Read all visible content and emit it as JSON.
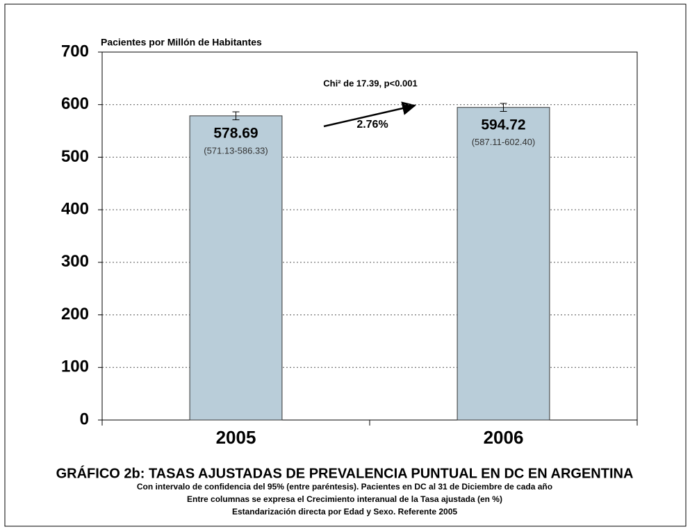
{
  "chart_data": {
    "type": "bar",
    "title": "GRÁFICO 2b:  TASAS AJUSTADAS DE PREVALENCIA PUNTUAL EN DC EN ARGENTINA",
    "subtitle": [
      "Con intervalo de confidencia del 95% (entre paréntesis). Pacientes en DC al 31 de Diciembre de cada año",
      "Entre columnas se expresa el Crecimiento interanual de la Tasa ajustada (en %)",
      "Estandarización directa por Edad y Sexo. Referente 2005"
    ],
    "y_label": "Pacientes por Millón de Habitantes",
    "categories": [
      "2005",
      "2006"
    ],
    "values": [
      578.69,
      594.72
    ],
    "ci_low": [
      571.13,
      587.11
    ],
    "ci_high": [
      586.33,
      602.4
    ],
    "ci_labels": [
      "(571.13-586.33)",
      "(587.11-602.40)"
    ],
    "color": "#b9cdd9",
    "annotations": [
      "Chi² de 17.39, p<0.001",
      "2.76%"
    ],
    "ylim": [
      0,
      700
    ],
    "yticks": [
      0,
      100,
      200,
      300,
      400,
      500,
      600,
      700
    ],
    "grid": true
  }
}
